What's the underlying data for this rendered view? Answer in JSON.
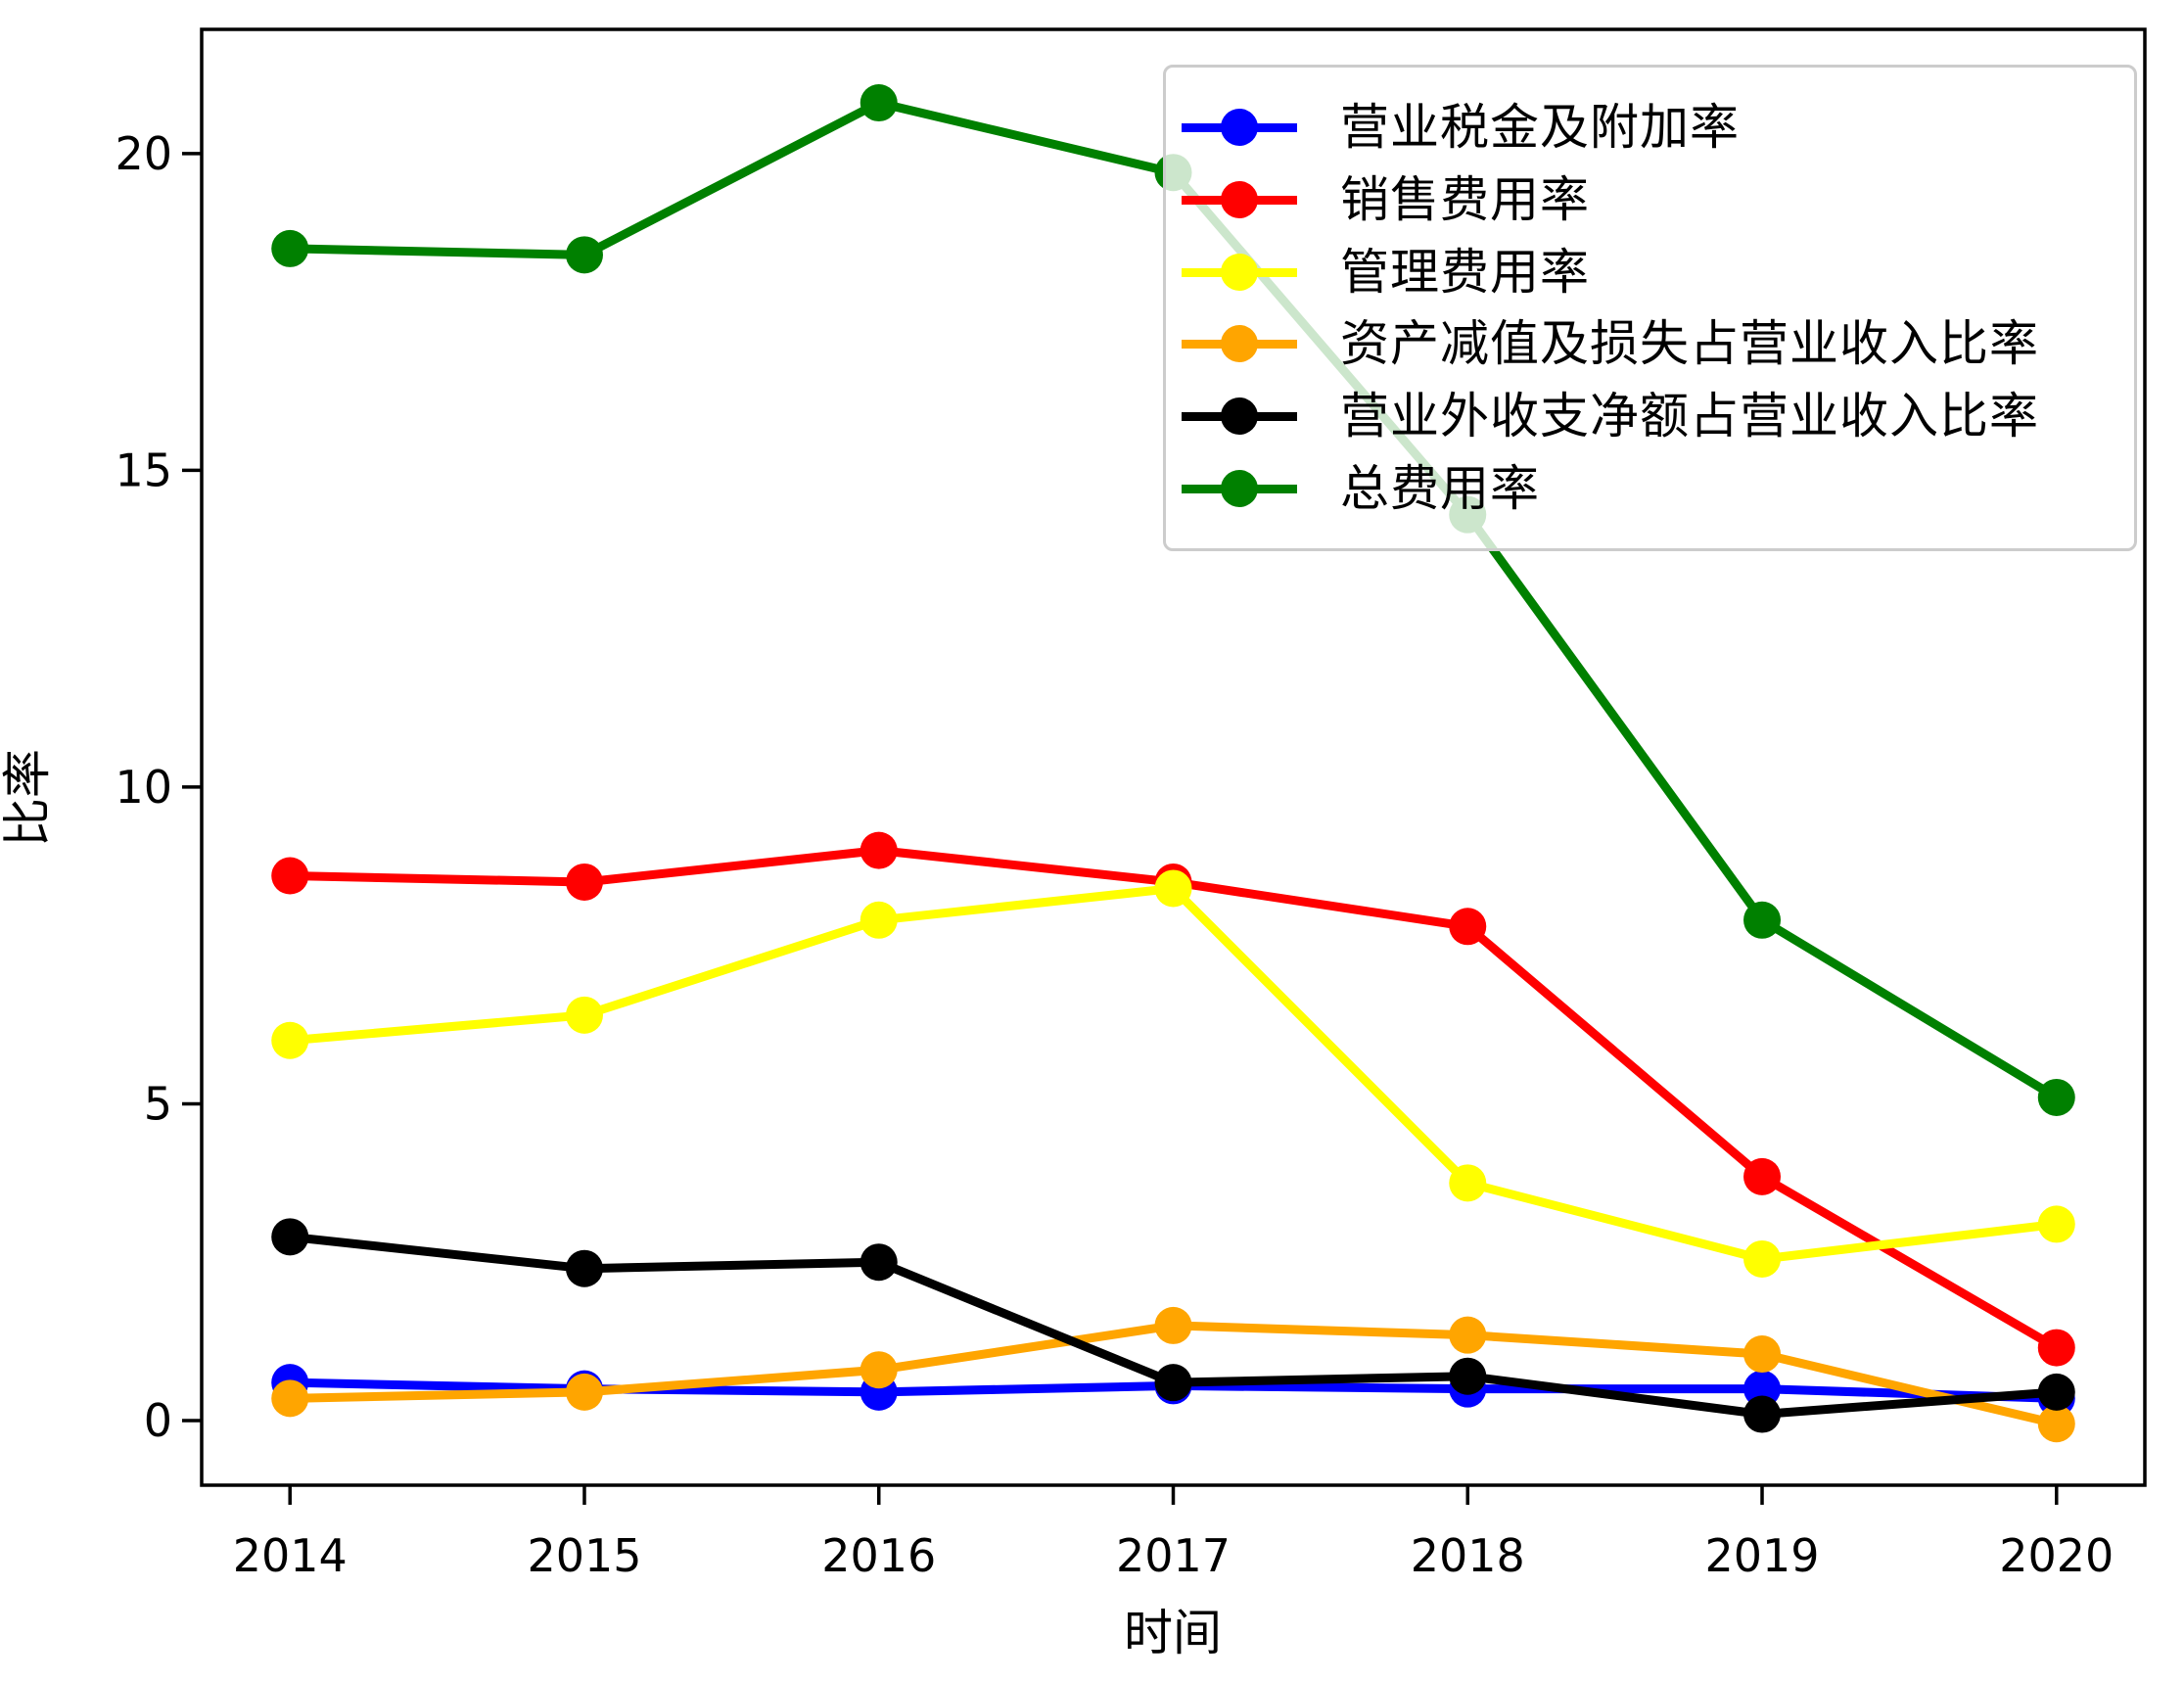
{
  "chart_data": {
    "type": "line",
    "title": "",
    "xlabel": "时间",
    "ylabel": "比率",
    "categories": [
      2014,
      2015,
      2016,
      2017,
      2018,
      2019,
      2020
    ],
    "x_tick_labels": [
      "2014",
      "2015",
      "2016",
      "2017",
      "2018",
      "2019",
      "2020"
    ],
    "y_ticks": [
      0,
      5,
      10,
      15,
      20
    ],
    "xlim": [
      2013.7,
      2020.3
    ],
    "ylim": [
      -1.02,
      21.96
    ],
    "grid": false,
    "legend_position": "upper right",
    "series": [
      {
        "name": "营业税金及附加率",
        "color": "#0000ff",
        "values": [
          0.6,
          0.5,
          0.45,
          0.55,
          0.5,
          0.5,
          0.35
        ]
      },
      {
        "name": "销售费用率",
        "color": "#ff0000",
        "values": [
          8.6,
          8.5,
          9.0,
          8.5,
          7.8,
          3.85,
          1.15
        ]
      },
      {
        "name": "管理费用率",
        "color": "#ffff00",
        "values": [
          6.0,
          6.4,
          7.9,
          8.4,
          3.75,
          2.55,
          3.1
        ]
      },
      {
        "name": "资产减值及损失占营业收入比率",
        "color": "#ffa500",
        "values": [
          0.35,
          0.45,
          0.8,
          1.5,
          1.35,
          1.05,
          -0.05
        ]
      },
      {
        "name": "营业外收支净额占营业收入比率",
        "color": "#000000",
        "values": [
          2.9,
          2.4,
          2.5,
          0.6,
          0.7,
          0.1,
          0.45
        ]
      },
      {
        "name": "总费用率",
        "color": "#008000",
        "values": [
          18.5,
          18.4,
          20.8,
          19.7,
          14.3,
          7.9,
          5.1
        ]
      }
    ]
  }
}
